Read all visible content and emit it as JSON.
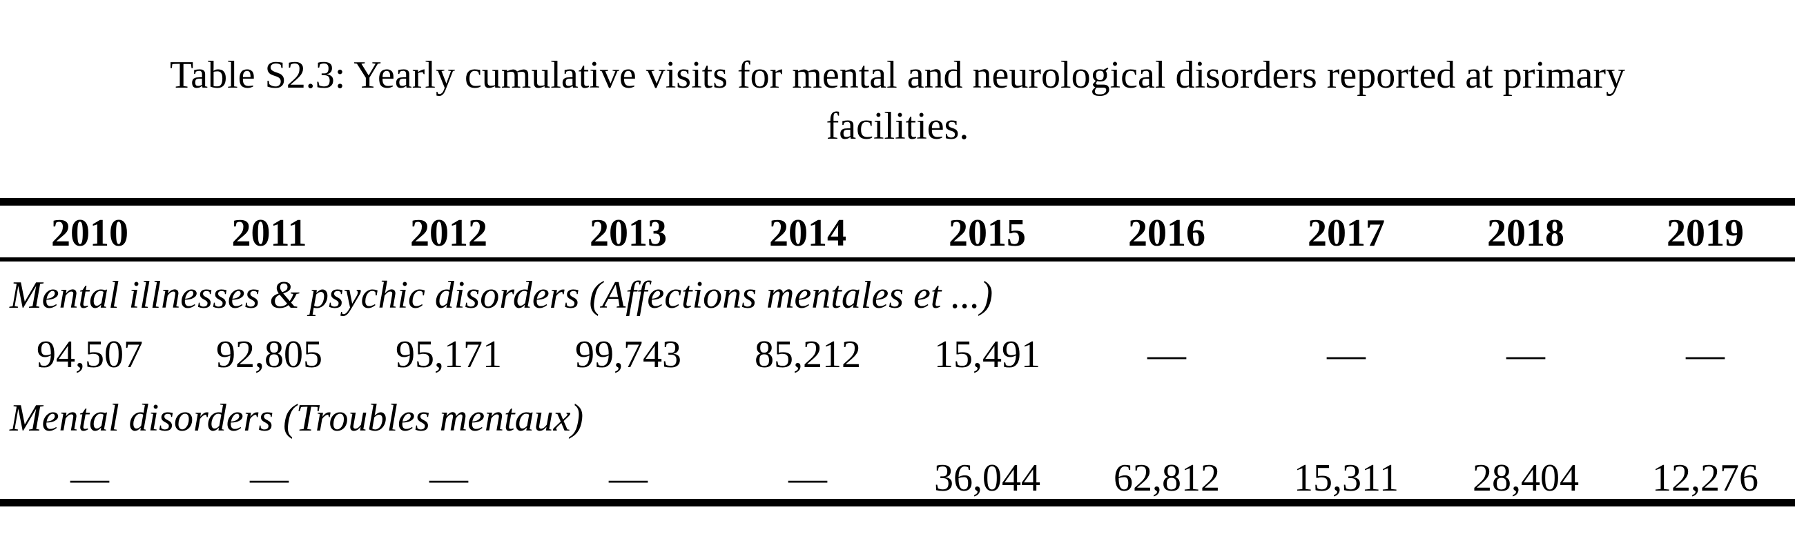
{
  "caption": {
    "line1": "Table S2.3: Yearly cumulative visits for mental and neurological disorders reported at primary",
    "line2": "facilities."
  },
  "table": {
    "years": [
      "2010",
      "2011",
      "2012",
      "2013",
      "2014",
      "2015",
      "2016",
      "2017",
      "2018",
      "2019"
    ],
    "groups": [
      {
        "label": "Mental illnesses & psychic disorders (Affections mentales et ...)",
        "values": [
          "94,507",
          "92,805",
          "95,171",
          "99,743",
          "85,212",
          "15,491",
          "—",
          "—",
          "—",
          "—"
        ]
      },
      {
        "label": "Mental disorders (Troubles mentaux)",
        "values": [
          "—",
          "—",
          "—",
          "—",
          "—",
          "36,044",
          "62,812",
          "15,311",
          "28,404",
          "12,276"
        ]
      }
    ]
  }
}
